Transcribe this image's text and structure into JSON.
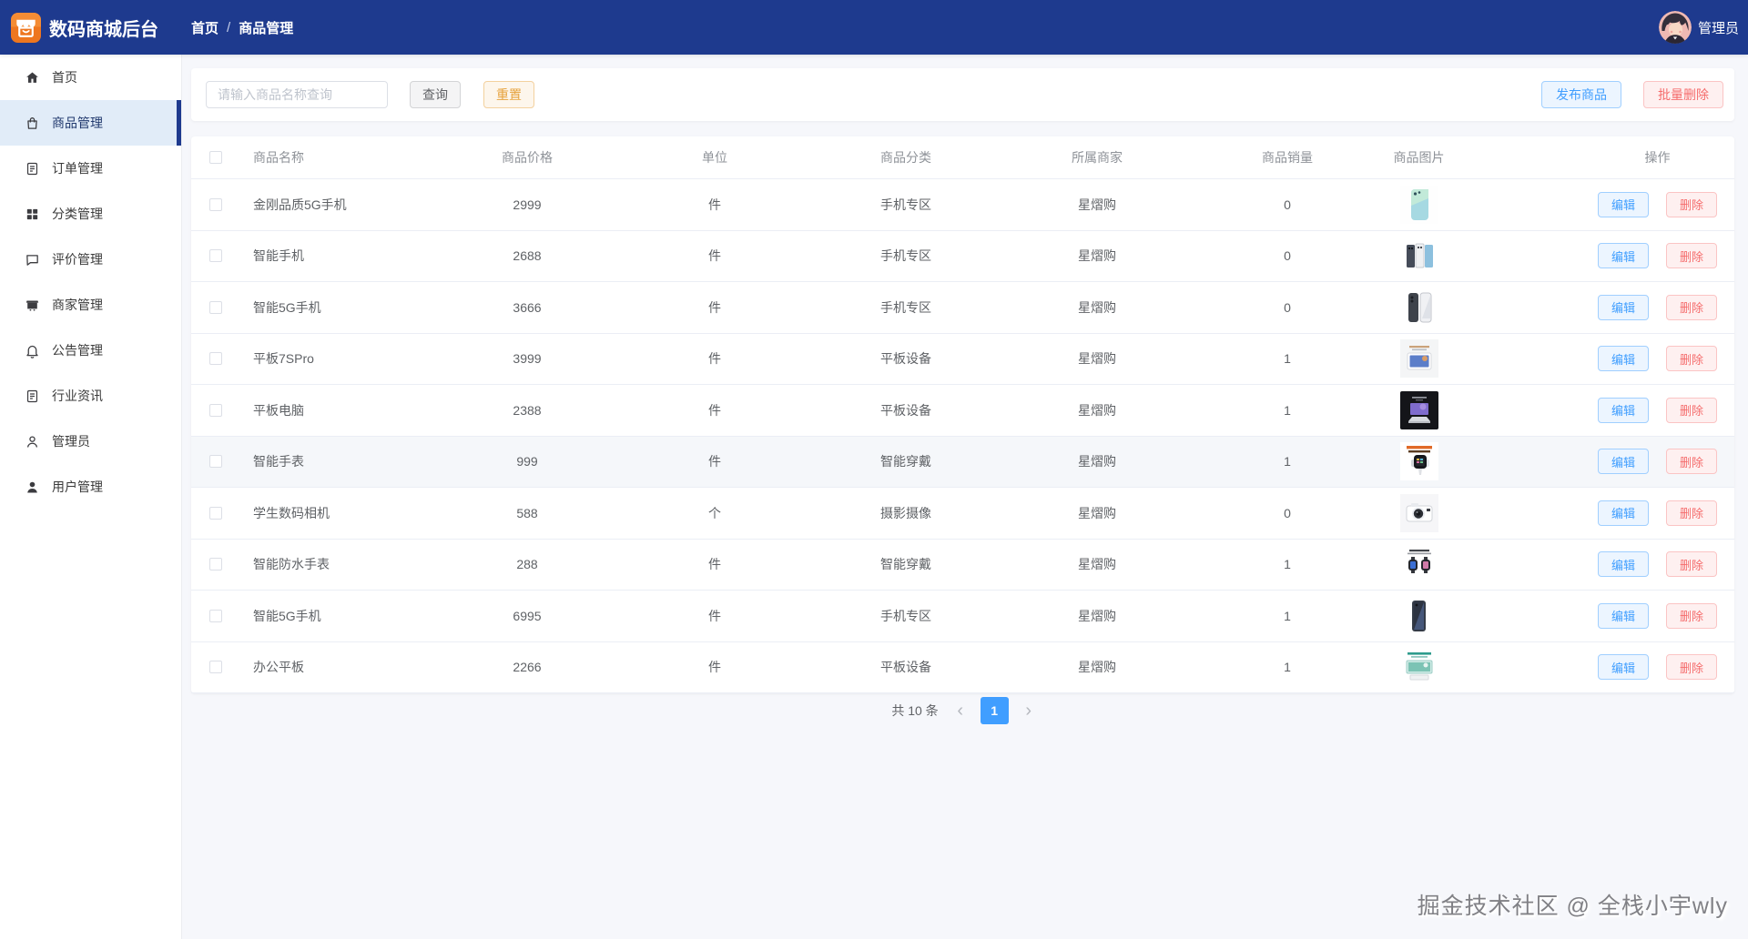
{
  "topbar": {
    "title": "数码商城后台",
    "breadcrumb": {
      "home": "首页",
      "sep": "/",
      "current": "商品管理"
    },
    "username": "管理员"
  },
  "sidebar": {
    "active": 1,
    "items": [
      {
        "label": "首页",
        "icon": "home"
      },
      {
        "label": "商品管理",
        "icon": "bag"
      },
      {
        "label": "订单管理",
        "icon": "doc"
      },
      {
        "label": "分类管理",
        "icon": "grid"
      },
      {
        "label": "评价管理",
        "icon": "chat"
      },
      {
        "label": "商家管理",
        "icon": "shop"
      },
      {
        "label": "公告管理",
        "icon": "bell"
      },
      {
        "label": "行业资讯",
        "icon": "doc"
      },
      {
        "label": "管理员",
        "icon": "person_o"
      },
      {
        "label": "用户管理",
        "icon": "person_f"
      }
    ]
  },
  "toolbar": {
    "search_placeholder": "请输入商品名称查询",
    "query": "查询",
    "reset": "重置",
    "publish": "发布商品",
    "batch_delete": "批量删除"
  },
  "table": {
    "columns": [
      "商品名称",
      "商品价格",
      "单位",
      "商品分类",
      "所属商家",
      "商品销量",
      "商品图片",
      "操作"
    ],
    "actions": {
      "edit": "编辑",
      "delete": "删除"
    },
    "rows": [
      {
        "name": "金刚品质5G手机",
        "price": "2999",
        "unit": "件",
        "category": "手机专区",
        "merchant": "星熠购",
        "sales": "0",
        "thumb": "phone_mint",
        "hover": false
      },
      {
        "name": "智能手机",
        "price": "2688",
        "unit": "件",
        "category": "手机专区",
        "merchant": "星熠购",
        "sales": "0",
        "thumb": "phones_trio",
        "hover": false
      },
      {
        "name": "智能5G手机",
        "price": "3666",
        "unit": "件",
        "category": "手机专区",
        "merchant": "星熠购",
        "sales": "0",
        "thumb": "phone_dark_duo",
        "hover": false
      },
      {
        "name": "平板7SPro",
        "price": "3999",
        "unit": "件",
        "category": "平板设备",
        "merchant": "星熠购",
        "sales": "1",
        "thumb": "tablet_box",
        "hover": false
      },
      {
        "name": "平板电脑",
        "price": "2388",
        "unit": "件",
        "category": "平板设备",
        "merchant": "星熠购",
        "sales": "1",
        "thumb": "tablet_dark",
        "hover": false
      },
      {
        "name": "智能手表",
        "price": "999",
        "unit": "件",
        "category": "智能穿戴",
        "merchant": "星熠购",
        "sales": "1",
        "thumb": "watch_banner",
        "hover": true
      },
      {
        "name": "学生数码相机",
        "price": "588",
        "unit": "个",
        "category": "摄影摄像",
        "merchant": "星熠购",
        "sales": "0",
        "thumb": "camera",
        "hover": false
      },
      {
        "name": "智能防水手表",
        "price": "288",
        "unit": "件",
        "category": "智能穿戴",
        "merchant": "星熠购",
        "sales": "1",
        "thumb": "watches_duo",
        "hover": false
      },
      {
        "name": "智能5G手机",
        "price": "6995",
        "unit": "件",
        "category": "手机专区",
        "merchant": "星熠购",
        "sales": "1",
        "thumb": "phone_dark2",
        "hover": false
      },
      {
        "name": "办公平板",
        "price": "2266",
        "unit": "件",
        "category": "平板设备",
        "merchant": "星熠购",
        "sales": "1",
        "thumb": "tablet_teal",
        "hover": false
      }
    ]
  },
  "pagination": {
    "total": "共 10 条",
    "page": "1",
    "prev": "‹",
    "next": "›"
  },
  "watermark": "掘金技术社区 @ 全栈小宇wly",
  "colors": {
    "header": "#1e3a8e",
    "primary": "#409eff",
    "danger": "#f56c6c",
    "warning": "#e6a23c",
    "active_bg": "#e1ecf8"
  }
}
